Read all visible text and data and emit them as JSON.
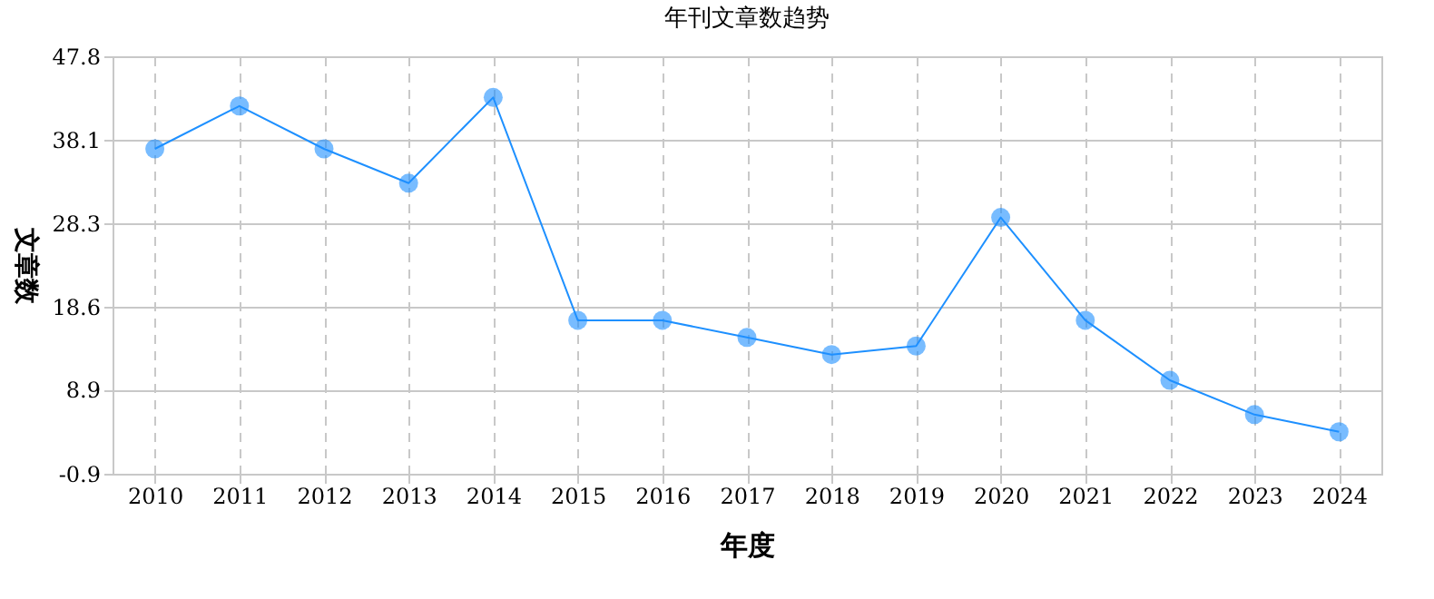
{
  "chart_data": {
    "type": "line",
    "title": "年刊文章数趋势",
    "xlabel": "年度",
    "ylabel": "文章数",
    "categories": [
      "2010",
      "2011",
      "2012",
      "2013",
      "2014",
      "2015",
      "2016",
      "2017",
      "2018",
      "2019",
      "2020",
      "2021",
      "2022",
      "2023",
      "2024"
    ],
    "series": [
      {
        "color": "#1e90ff",
        "values": [
          37,
          42,
          37,
          33,
          43,
          17,
          17,
          15,
          13,
          14,
          29,
          17,
          10,
          6,
          4
        ]
      }
    ],
    "ylim": [
      -0.9,
      47.8
    ],
    "yticks": [
      -0.9,
      8.9,
      18.6,
      28.3,
      38.1,
      47.8
    ],
    "grid": true,
    "marker": "circle",
    "line_style": "solid"
  }
}
